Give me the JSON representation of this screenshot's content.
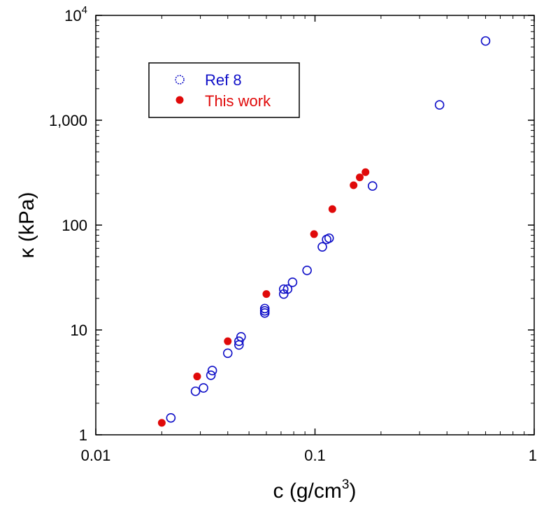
{
  "chart_data": {
    "type": "scatter",
    "title": "",
    "xlabel": "c  (g/cm",
    "xlabel_sup": "3",
    "xlabel_close": ")",
    "ylabel": "κ (kPa)",
    "x_scale": "log",
    "y_scale": "log",
    "xlim": [
      0.01,
      1
    ],
    "ylim": [
      1,
      10000
    ],
    "x_ticks": [
      {
        "value": 0.01,
        "label": "0.01"
      },
      {
        "value": 0.1,
        "label": "0.1"
      },
      {
        "value": 1,
        "label": "1"
      }
    ],
    "y_ticks": [
      {
        "value": 1,
        "label": "1"
      },
      {
        "value": 10,
        "label": "10"
      },
      {
        "value": 100,
        "label": "100"
      },
      {
        "value": 1000,
        "label": "1,000"
      },
      {
        "value": 10000,
        "label": "10",
        "sup": "4"
      }
    ],
    "grid": false,
    "legend_position": "top-left",
    "series": [
      {
        "name": "Ref 8",
        "marker": "open-circle",
        "color": "#1010c8",
        "points": [
          {
            "x": 0.022,
            "y": 1.45
          },
          {
            "x": 0.0285,
            "y": 2.6
          },
          {
            "x": 0.031,
            "y": 2.8
          },
          {
            "x": 0.0335,
            "y": 3.7
          },
          {
            "x": 0.034,
            "y": 4.1
          },
          {
            "x": 0.04,
            "y": 6.0
          },
          {
            "x": 0.045,
            "y": 7.2
          },
          {
            "x": 0.045,
            "y": 7.8
          },
          {
            "x": 0.046,
            "y": 8.6
          },
          {
            "x": 0.059,
            "y": 14.5
          },
          {
            "x": 0.059,
            "y": 15.2
          },
          {
            "x": 0.059,
            "y": 16.0
          },
          {
            "x": 0.072,
            "y": 22.0
          },
          {
            "x": 0.072,
            "y": 24.5
          },
          {
            "x": 0.075,
            "y": 24.5
          },
          {
            "x": 0.079,
            "y": 28.5
          },
          {
            "x": 0.092,
            "y": 37.0
          },
          {
            "x": 0.108,
            "y": 62.0
          },
          {
            "x": 0.113,
            "y": 73.0
          },
          {
            "x": 0.116,
            "y": 75.0
          },
          {
            "x": 0.183,
            "y": 236.0
          },
          {
            "x": 0.37,
            "y": 1400.0
          },
          {
            "x": 0.6,
            "y": 5700.0
          }
        ]
      },
      {
        "name": "This work",
        "marker": "filled-circle",
        "color": "#e00a0a",
        "points": [
          {
            "x": 0.02,
            "y": 1.3
          },
          {
            "x": 0.029,
            "y": 3.6
          },
          {
            "x": 0.04,
            "y": 7.8
          },
          {
            "x": 0.06,
            "y": 22.0
          },
          {
            "x": 0.099,
            "y": 82.0
          },
          {
            "x": 0.12,
            "y": 142.0
          },
          {
            "x": 0.15,
            "y": 240.0
          },
          {
            "x": 0.16,
            "y": 285.0
          },
          {
            "x": 0.17,
            "y": 320.0
          }
        ]
      }
    ]
  }
}
